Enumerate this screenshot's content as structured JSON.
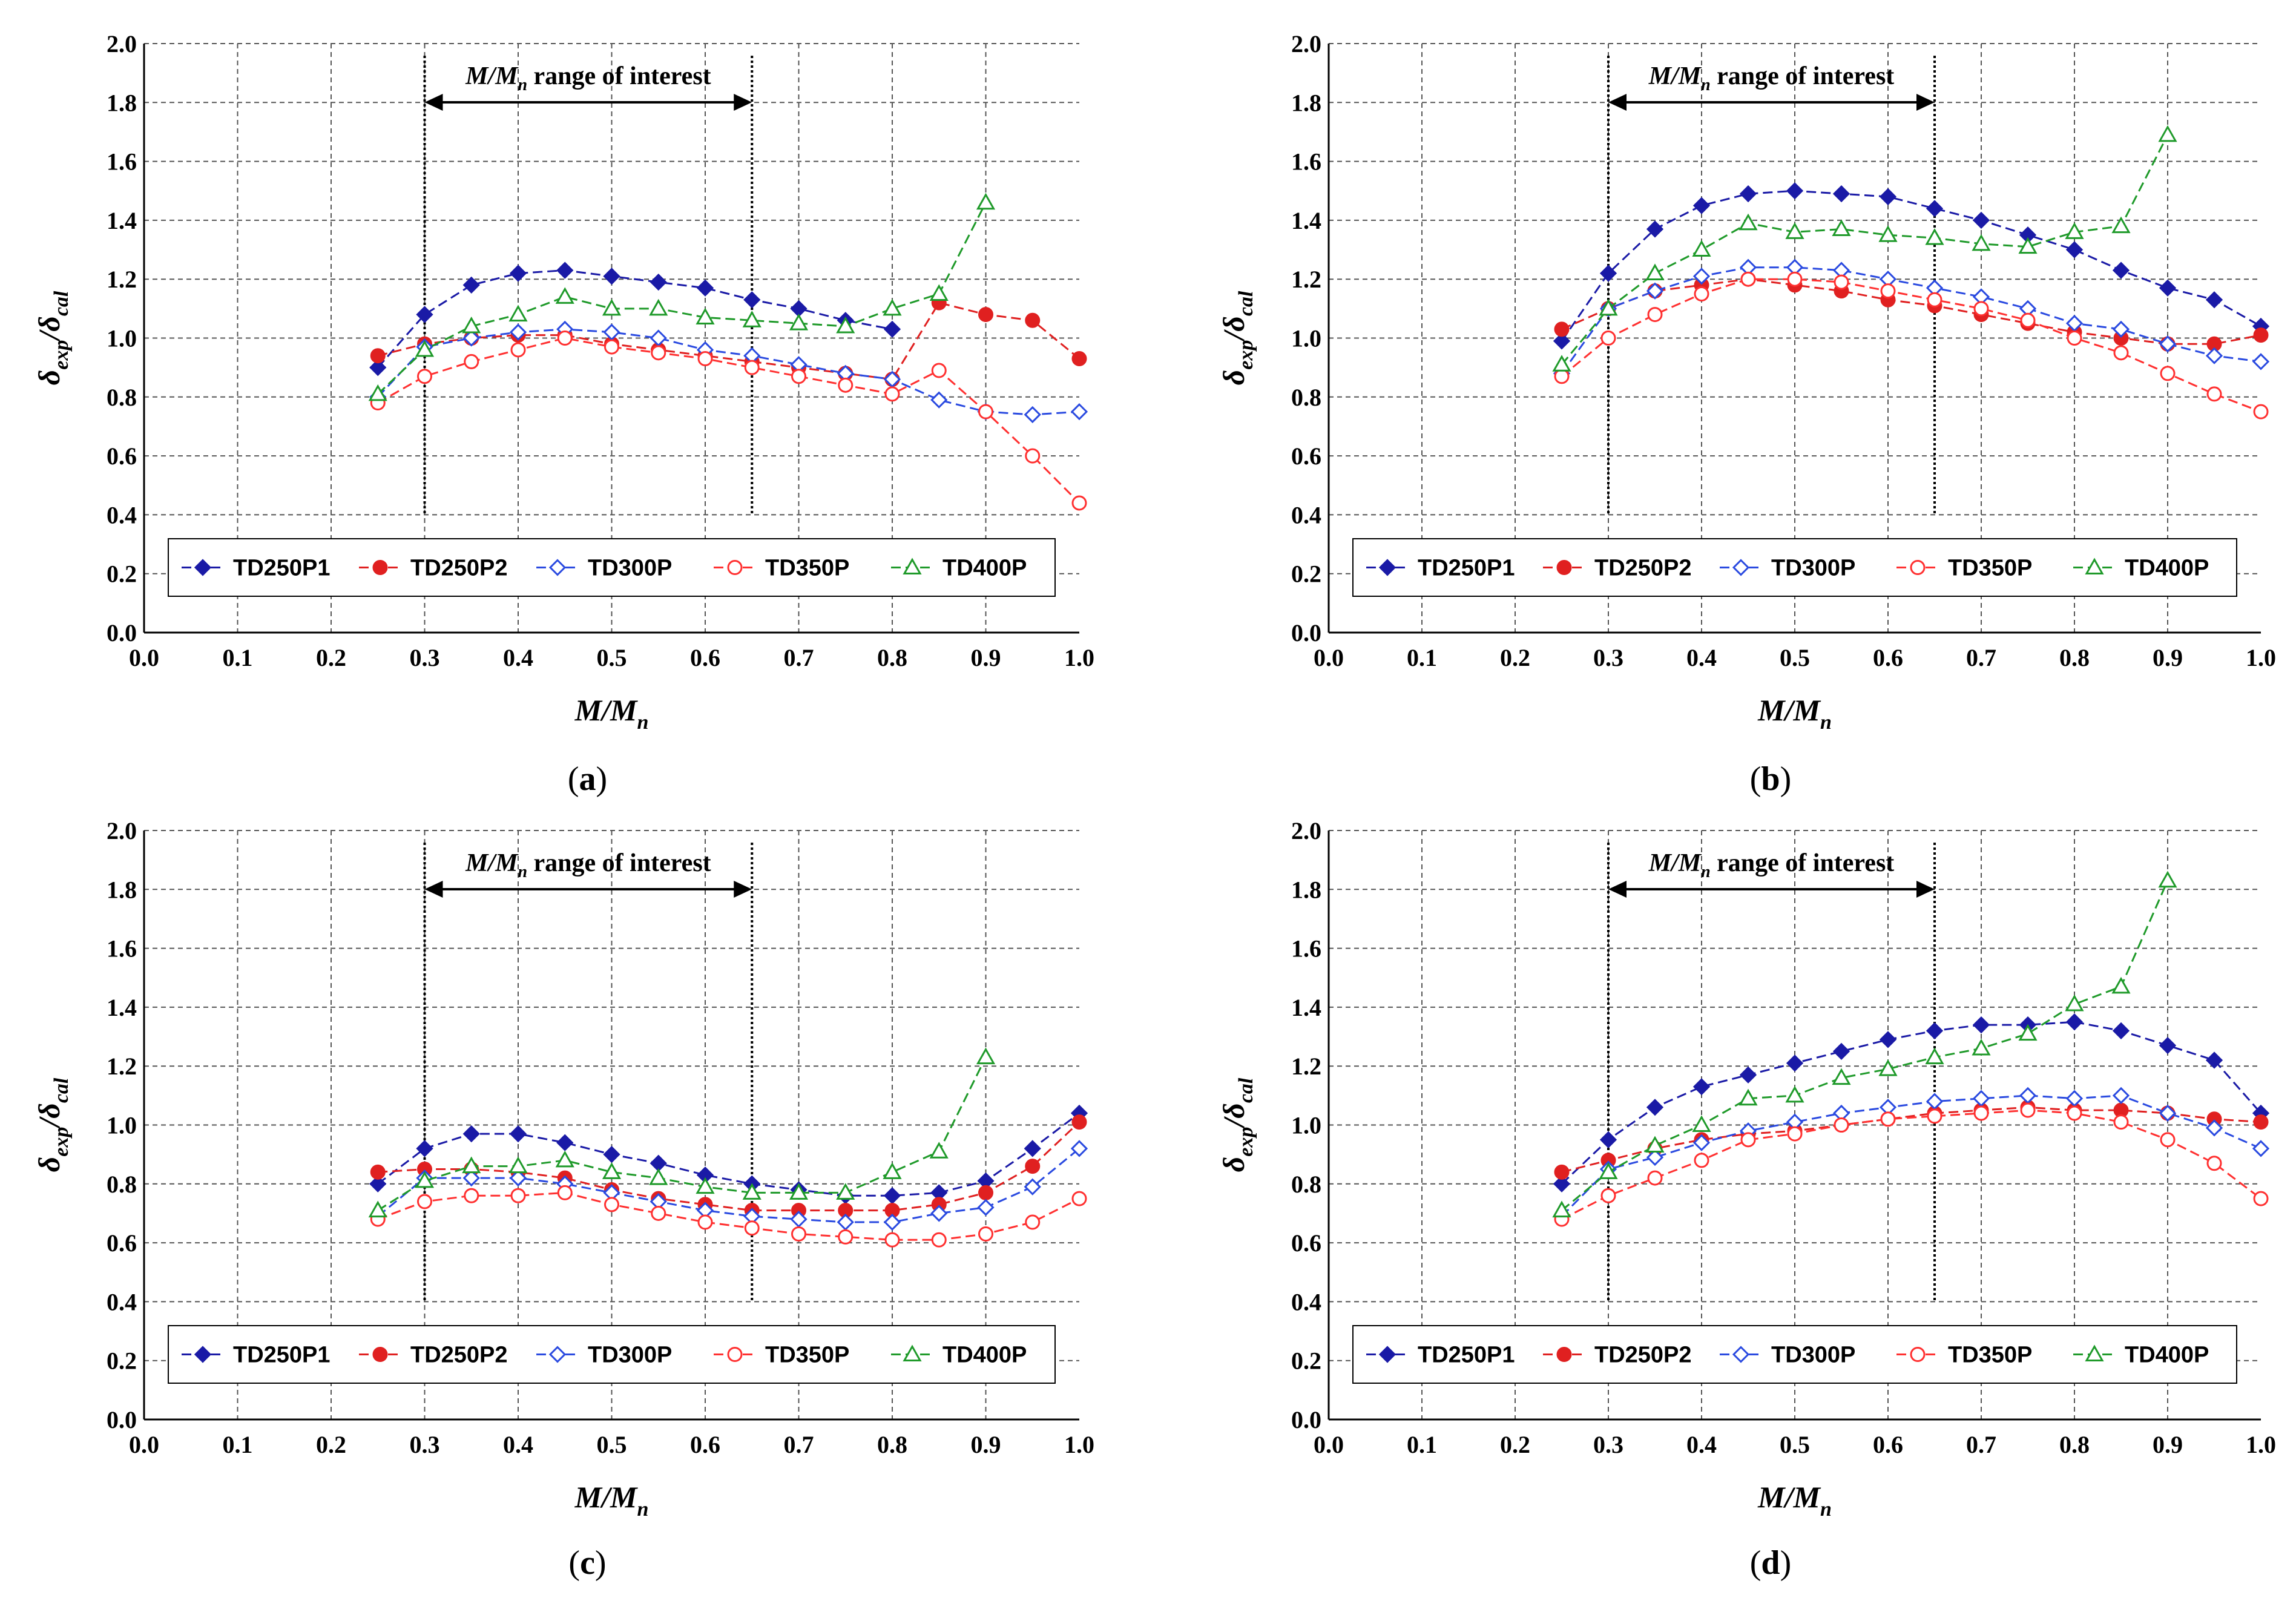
{
  "chart_data": [
    {
      "type": "line",
      "caption": "a",
      "xlabel": "M/Mn",
      "ylabel": "δexp/δcal",
      "xlim": [
        0.0,
        1.0
      ],
      "ylim": [
        0.0,
        2.0
      ],
      "xticks": [
        "0.0",
        "0.1",
        "0.2",
        "0.3",
        "0.4",
        "0.5",
        "0.6",
        "0.7",
        "0.8",
        "0.9",
        "1.0"
      ],
      "yticks": [
        "0.0",
        "0.2",
        "0.4",
        "0.6",
        "0.8",
        "1.0",
        "1.2",
        "1.4",
        "1.6",
        "1.8",
        "2.0"
      ],
      "grid": true,
      "annotation": {
        "text_main": "M/M",
        "text_sub": "n",
        "text_rest": " range of interest",
        "range": [
          0.3,
          0.65
        ]
      },
      "series": [
        {
          "name": "TD250P1",
          "color": "#1a1aa6",
          "marker": "diamond-filled",
          "x": [
            0.25,
            0.3,
            0.35,
            0.4,
            0.45,
            0.5,
            0.55,
            0.6,
            0.65,
            0.7,
            0.75,
            0.8
          ],
          "y": [
            0.9,
            1.08,
            1.18,
            1.22,
            1.23,
            1.21,
            1.19,
            1.17,
            1.13,
            1.1,
            1.06,
            1.03
          ]
        },
        {
          "name": "TD250P2",
          "color": "#e02020",
          "marker": "circle-filled",
          "x": [
            0.25,
            0.3,
            0.35,
            0.4,
            0.45,
            0.5,
            0.55,
            0.6,
            0.65,
            0.7,
            0.75,
            0.8,
            0.85,
            0.9,
            0.95,
            1.0
          ],
          "y": [
            0.94,
            0.98,
            1.0,
            1.01,
            1.01,
            0.98,
            0.96,
            0.94,
            0.92,
            0.9,
            0.88,
            0.86,
            1.12,
            1.08,
            1.06,
            0.93
          ]
        },
        {
          "name": "TD300P",
          "color": "#2a4ae0",
          "marker": "diamond-open",
          "x": [
            0.25,
            0.3,
            0.35,
            0.4,
            0.45,
            0.5,
            0.55,
            0.6,
            0.65,
            0.7,
            0.75,
            0.8,
            0.85,
            0.9,
            0.95,
            1.0
          ],
          "y": [
            0.8,
            0.97,
            1.0,
            1.02,
            1.03,
            1.02,
            1.0,
            0.96,
            0.94,
            0.91,
            0.88,
            0.86,
            0.79,
            0.75,
            0.74,
            0.75
          ]
        },
        {
          "name": "TD350P",
          "color": "#ff3030",
          "marker": "circle-open",
          "x": [
            0.25,
            0.3,
            0.35,
            0.4,
            0.45,
            0.5,
            0.55,
            0.6,
            0.65,
            0.7,
            0.75,
            0.8,
            0.85,
            0.9,
            0.95,
            1.0
          ],
          "y": [
            0.78,
            0.87,
            0.92,
            0.96,
            1.0,
            0.97,
            0.95,
            0.93,
            0.9,
            0.87,
            0.84,
            0.81,
            0.89,
            0.75,
            0.6,
            0.44
          ]
        },
        {
          "name": "TD400P",
          "color": "#1f9a2a",
          "marker": "triangle-open",
          "x": [
            0.25,
            0.3,
            0.35,
            0.4,
            0.45,
            0.5,
            0.55,
            0.6,
            0.65,
            0.7,
            0.75,
            0.8,
            0.85,
            0.9
          ],
          "y": [
            0.81,
            0.96,
            1.04,
            1.08,
            1.14,
            1.1,
            1.1,
            1.07,
            1.06,
            1.05,
            1.04,
            1.1,
            1.15,
            1.46
          ]
        }
      ]
    },
    {
      "type": "line",
      "caption": "b",
      "xlabel": "M/Mn",
      "ylabel": "δexp/δcal",
      "xlim": [
        0.0,
        1.0
      ],
      "ylim": [
        0.0,
        2.0
      ],
      "xticks": [
        "0.0",
        "0.1",
        "0.2",
        "0.3",
        "0.4",
        "0.5",
        "0.6",
        "0.7",
        "0.8",
        "0.9",
        "1.0"
      ],
      "yticks": [
        "0.0",
        "0.2",
        "0.4",
        "0.6",
        "0.8",
        "1.0",
        "1.2",
        "1.4",
        "1.6",
        "1.8",
        "2.0"
      ],
      "grid": true,
      "annotation": {
        "text_main": "M/M",
        "text_sub": "n",
        "text_rest": " range of interest",
        "range": [
          0.3,
          0.65
        ]
      },
      "series": [
        {
          "name": "TD250P1",
          "color": "#1a1aa6",
          "marker": "diamond-filled",
          "x": [
            0.25,
            0.3,
            0.35,
            0.4,
            0.45,
            0.5,
            0.55,
            0.6,
            0.65,
            0.7,
            0.75,
            0.8,
            0.85,
            0.9,
            0.95,
            1.0
          ],
          "y": [
            0.99,
            1.22,
            1.37,
            1.45,
            1.49,
            1.5,
            1.49,
            1.48,
            1.44,
            1.4,
            1.35,
            1.3,
            1.23,
            1.17,
            1.13,
            1.04
          ]
        },
        {
          "name": "TD250P2",
          "color": "#e02020",
          "marker": "circle-filled",
          "x": [
            0.25,
            0.3,
            0.35,
            0.4,
            0.45,
            0.5,
            0.55,
            0.6,
            0.65,
            0.7,
            0.75,
            0.8,
            0.85,
            0.9,
            0.95,
            1.0
          ],
          "y": [
            1.03,
            1.1,
            1.16,
            1.18,
            1.2,
            1.18,
            1.16,
            1.13,
            1.11,
            1.08,
            1.05,
            1.02,
            1.0,
            0.98,
            0.98,
            1.01
          ]
        },
        {
          "name": "TD300P",
          "color": "#2a4ae0",
          "marker": "diamond-open",
          "x": [
            0.25,
            0.3,
            0.35,
            0.4,
            0.45,
            0.5,
            0.55,
            0.6,
            0.65,
            0.7,
            0.75,
            0.8,
            0.85,
            0.9,
            0.95,
            1.0
          ],
          "y": [
            0.88,
            1.1,
            1.16,
            1.21,
            1.24,
            1.24,
            1.23,
            1.2,
            1.17,
            1.14,
            1.1,
            1.05,
            1.03,
            0.98,
            0.94,
            0.92
          ]
        },
        {
          "name": "TD350P",
          "color": "#ff3030",
          "marker": "circle-open",
          "x": [
            0.25,
            0.3,
            0.35,
            0.4,
            0.45,
            0.5,
            0.55,
            0.6,
            0.65,
            0.7,
            0.75,
            0.8,
            0.85,
            0.9,
            0.95,
            1.0
          ],
          "y": [
            0.87,
            1.0,
            1.08,
            1.15,
            1.2,
            1.2,
            1.19,
            1.16,
            1.13,
            1.1,
            1.06,
            1.0,
            0.95,
            0.88,
            0.81,
            0.75
          ]
        },
        {
          "name": "TD400P",
          "color": "#1f9a2a",
          "marker": "triangle-open",
          "x": [
            0.25,
            0.3,
            0.35,
            0.4,
            0.45,
            0.5,
            0.55,
            0.6,
            0.65,
            0.7,
            0.75,
            0.8,
            0.85,
            0.9
          ],
          "y": [
            0.91,
            1.1,
            1.22,
            1.3,
            1.39,
            1.36,
            1.37,
            1.35,
            1.34,
            1.32,
            1.31,
            1.36,
            1.38,
            1.69
          ]
        }
      ]
    },
    {
      "type": "line",
      "caption": "c",
      "xlabel": "M/Mn",
      "ylabel": "δexp/δcal",
      "xlim": [
        0.0,
        1.0
      ],
      "ylim": [
        0.0,
        2.0
      ],
      "xticks": [
        "0.0",
        "0.1",
        "0.2",
        "0.3",
        "0.4",
        "0.5",
        "0.6",
        "0.7",
        "0.8",
        "0.9",
        "1.0"
      ],
      "yticks": [
        "0.0",
        "0.2",
        "0.4",
        "0.6",
        "0.8",
        "1.0",
        "1.2",
        "1.4",
        "1.6",
        "1.8",
        "2.0"
      ],
      "grid": true,
      "annotation": {
        "text_main": "M/M",
        "text_sub": "n",
        "text_rest": " range of interest",
        "range": [
          0.3,
          0.65
        ]
      },
      "series": [
        {
          "name": "TD250P1",
          "color": "#1a1aa6",
          "marker": "diamond-filled",
          "x": [
            0.25,
            0.3,
            0.35,
            0.4,
            0.45,
            0.5,
            0.55,
            0.6,
            0.65,
            0.7,
            0.75,
            0.8,
            0.85,
            0.9,
            0.95,
            1.0
          ],
          "y": [
            0.8,
            0.92,
            0.97,
            0.97,
            0.94,
            0.9,
            0.87,
            0.83,
            0.8,
            0.78,
            0.76,
            0.76,
            0.77,
            0.81,
            0.92,
            1.04
          ]
        },
        {
          "name": "TD250P2",
          "color": "#e02020",
          "marker": "circle-filled",
          "x": [
            0.25,
            0.3,
            0.35,
            0.4,
            0.45,
            0.5,
            0.55,
            0.6,
            0.65,
            0.7,
            0.75,
            0.8,
            0.85,
            0.9,
            0.95,
            1.0
          ],
          "y": [
            0.84,
            0.85,
            0.85,
            0.84,
            0.82,
            0.78,
            0.75,
            0.73,
            0.71,
            0.71,
            0.71,
            0.71,
            0.73,
            0.77,
            0.86,
            1.01
          ]
        },
        {
          "name": "TD300P",
          "color": "#2a4ae0",
          "marker": "diamond-open",
          "x": [
            0.25,
            0.3,
            0.35,
            0.4,
            0.45,
            0.5,
            0.55,
            0.6,
            0.65,
            0.7,
            0.75,
            0.8,
            0.85,
            0.9,
            0.95,
            1.0
          ],
          "y": [
            0.69,
            0.82,
            0.82,
            0.82,
            0.8,
            0.77,
            0.74,
            0.71,
            0.69,
            0.68,
            0.67,
            0.67,
            0.7,
            0.72,
            0.79,
            0.92
          ]
        },
        {
          "name": "TD350P",
          "color": "#ff3030",
          "marker": "circle-open",
          "x": [
            0.25,
            0.3,
            0.35,
            0.4,
            0.45,
            0.5,
            0.55,
            0.6,
            0.65,
            0.7,
            0.75,
            0.8,
            0.85,
            0.9,
            0.95,
            1.0
          ],
          "y": [
            0.68,
            0.74,
            0.76,
            0.76,
            0.77,
            0.73,
            0.7,
            0.67,
            0.65,
            0.63,
            0.62,
            0.61,
            0.61,
            0.63,
            0.67,
            0.75
          ]
        },
        {
          "name": "TD400P",
          "color": "#1f9a2a",
          "marker": "triangle-open",
          "x": [
            0.25,
            0.3,
            0.35,
            0.4,
            0.45,
            0.5,
            0.55,
            0.6,
            0.65,
            0.7,
            0.75,
            0.8,
            0.85,
            0.9
          ],
          "y": [
            0.71,
            0.81,
            0.86,
            0.86,
            0.88,
            0.84,
            0.82,
            0.79,
            0.77,
            0.77,
            0.77,
            0.84,
            0.91,
            1.23
          ]
        }
      ]
    },
    {
      "type": "line",
      "caption": "d",
      "xlabel": "M/Mn",
      "ylabel": "δexp/δcal",
      "xlim": [
        0.0,
        1.0
      ],
      "ylim": [
        0.0,
        2.0
      ],
      "xticks": [
        "0.0",
        "0.1",
        "0.2",
        "0.3",
        "0.4",
        "0.5",
        "0.6",
        "0.7",
        "0.8",
        "0.9",
        "1.0"
      ],
      "yticks": [
        "0.0",
        "0.2",
        "0.4",
        "0.6",
        "0.8",
        "1.0",
        "1.2",
        "1.4",
        "1.6",
        "1.8",
        "2.0"
      ],
      "grid": true,
      "annotation": {
        "text_main": "M/M",
        "text_sub": "n",
        "text_rest": " range of interest",
        "range": [
          0.3,
          0.65
        ]
      },
      "series": [
        {
          "name": "TD250P1",
          "color": "#1a1aa6",
          "marker": "diamond-filled",
          "x": [
            0.25,
            0.3,
            0.35,
            0.4,
            0.45,
            0.5,
            0.55,
            0.6,
            0.65,
            0.7,
            0.75,
            0.8,
            0.85,
            0.9,
            0.95,
            1.0
          ],
          "y": [
            0.8,
            0.95,
            1.06,
            1.13,
            1.17,
            1.21,
            1.25,
            1.29,
            1.32,
            1.34,
            1.34,
            1.35,
            1.32,
            1.27,
            1.22,
            1.04
          ]
        },
        {
          "name": "TD250P2",
          "color": "#e02020",
          "marker": "circle-filled",
          "x": [
            0.25,
            0.3,
            0.35,
            0.4,
            0.45,
            0.5,
            0.55,
            0.6,
            0.65,
            0.7,
            0.75,
            0.8,
            0.85,
            0.9,
            0.95,
            1.0
          ],
          "y": [
            0.84,
            0.88,
            0.92,
            0.95,
            0.97,
            0.98,
            1.0,
            1.02,
            1.04,
            1.05,
            1.06,
            1.05,
            1.05,
            1.04,
            1.02,
            1.01
          ]
        },
        {
          "name": "TD300P",
          "color": "#2a4ae0",
          "marker": "diamond-open",
          "x": [
            0.25,
            0.3,
            0.35,
            0.4,
            0.45,
            0.5,
            0.55,
            0.6,
            0.65,
            0.7,
            0.75,
            0.8,
            0.85,
            0.9,
            0.95,
            1.0
          ],
          "y": [
            0.69,
            0.85,
            0.89,
            0.94,
            0.98,
            1.01,
            1.04,
            1.06,
            1.08,
            1.09,
            1.1,
            1.09,
            1.1,
            1.04,
            0.99,
            0.92
          ]
        },
        {
          "name": "TD350P",
          "color": "#ff3030",
          "marker": "circle-open",
          "x": [
            0.25,
            0.3,
            0.35,
            0.4,
            0.45,
            0.5,
            0.55,
            0.6,
            0.65,
            0.7,
            0.75,
            0.8,
            0.85,
            0.9,
            0.95,
            1.0
          ],
          "y": [
            0.68,
            0.76,
            0.82,
            0.88,
            0.95,
            0.97,
            1.0,
            1.02,
            1.03,
            1.04,
            1.05,
            1.04,
            1.01,
            0.95,
            0.87,
            0.75
          ]
        },
        {
          "name": "TD400P",
          "color": "#1f9a2a",
          "marker": "triangle-open",
          "x": [
            0.25,
            0.3,
            0.35,
            0.4,
            0.45,
            0.5,
            0.55,
            0.6,
            0.65,
            0.7,
            0.75,
            0.8,
            0.85,
            0.9
          ],
          "y": [
            0.71,
            0.84,
            0.93,
            1.0,
            1.09,
            1.1,
            1.16,
            1.19,
            1.23,
            1.26,
            1.31,
            1.41,
            1.47,
            1.83
          ]
        }
      ]
    }
  ]
}
